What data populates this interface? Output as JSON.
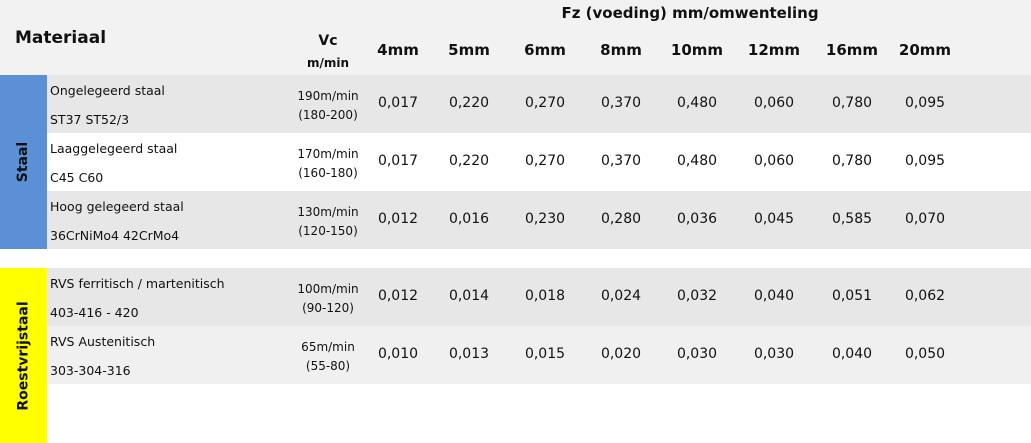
{
  "header": {
    "material": "Materiaal",
    "feed_title": "Fz  (voeding) mm/omwenteling",
    "vc": "Vc",
    "vc_unit": "m/min",
    "sizes": [
      "4mm",
      "5mm",
      "6mm",
      "8mm",
      "10mm",
      "12mm",
      "16mm",
      "20mm"
    ]
  },
  "groups": [
    {
      "label": "Staal",
      "rows": [
        {
          "name": "Ongelegeerd staal",
          "grade": "ST37 ST52/3",
          "vc": "190m/min",
          "vc_range": "(180-200)",
          "values": [
            "0,017",
            "0,220",
            "0,270",
            "0,370",
            "0,480",
            "0,060",
            "0,780",
            "0,095"
          ]
        },
        {
          "name": "Laaggelegeerd staal",
          "grade": "C45 C60",
          "vc": "170m/min",
          "vc_range": "(160-180)",
          "values": [
            "0,017",
            "0,220",
            "0,270",
            "0,370",
            "0,480",
            "0,060",
            "0,780",
            "0,095"
          ]
        },
        {
          "name": "Hoog gelegeerd staal",
          "grade": "36CrNiMo4 42CrMo4",
          "vc": "130m/min",
          "vc_range": "(120-150)",
          "values": [
            "0,012",
            "0,016",
            "0,230",
            "0,280",
            "0,036",
            "0,045",
            "0,585",
            "0,070"
          ]
        }
      ]
    },
    {
      "label": "Roestvrijstaal",
      "rows": [
        {
          "name": "RVS ferritisch / martenitisch",
          "grade": " 403-416 - 420",
          "vc": "100m/min",
          "vc_range": "(90-120)",
          "values": [
            "0,012",
            "0,014",
            "0,018",
            "0,024",
            "0,032",
            "0,040",
            "0,051",
            "0,062"
          ]
        },
        {
          "name": "RVS Austenitisch",
          "grade": "303-304-316",
          "vc": "65m/min",
          "vc_range": "(55-80)",
          "values": [
            "0,010",
            "0,013",
            "0,015",
            "0,020",
            "0,030",
            "0,030",
            "0,040",
            "0,050"
          ]
        }
      ]
    }
  ]
}
